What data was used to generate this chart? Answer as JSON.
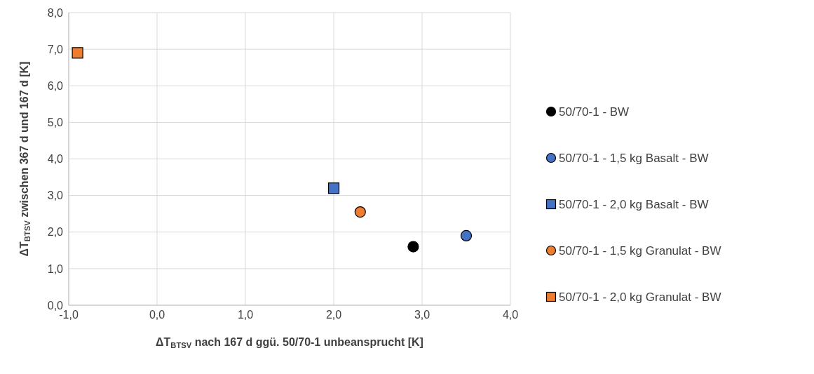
{
  "chart_data": {
    "type": "scatter",
    "xlabel": "ΔT$_{BTSV}$ nach 167 d ggü. 50/70-1 unbeansprucht [K]",
    "ylabel": "ΔT$_{BTSV}$ zwischen 367 d und 167 d [K]",
    "xlim": [
      -1,
      4
    ],
    "xticks": [
      {
        "value": -1,
        "label": "-1,0"
      },
      {
        "value": 0,
        "label": "0,0"
      },
      {
        "value": 1,
        "label": "1,0"
      },
      {
        "value": 2,
        "label": "2,0"
      },
      {
        "value": 3,
        "label": "3,0"
      },
      {
        "value": 4,
        "label": "4,0"
      }
    ],
    "ylim": [
      0,
      8
    ],
    "yticks": [
      {
        "value": 0,
        "label": "0,0"
      },
      {
        "value": 1,
        "label": "1,0"
      },
      {
        "value": 2,
        "label": "2,0"
      },
      {
        "value": 3,
        "label": "3,0"
      },
      {
        "value": 4,
        "label": "4,0"
      },
      {
        "value": 5,
        "label": "5,0"
      },
      {
        "value": 6,
        "label": "6,0"
      },
      {
        "value": 7,
        "label": "7,0"
      },
      {
        "value": 8,
        "label": "8,0"
      }
    ],
    "grid": true,
    "legend": "right",
    "series": [
      {
        "name": "50/70-1 - BW",
        "color": "#000000",
        "marker": "circle",
        "x": [
          2.9
        ],
        "values": [
          1.6
        ]
      },
      {
        "name": "50/70-1 - 1,5 kg Basalt - BW",
        "color": "#4472c4",
        "marker": "circle",
        "x": [
          3.5
        ],
        "values": [
          1.9
        ]
      },
      {
        "name": "50/70-1 - 2,0 kg Basalt - BW",
        "color": "#4472c4",
        "marker": "square",
        "x": [
          2.0
        ],
        "values": [
          3.2
        ]
      },
      {
        "name": "50/70-1 - 1,5 kg Granulat - BW",
        "color": "#ed7d31",
        "marker": "circle",
        "x": [
          2.3
        ],
        "values": [
          2.55
        ]
      },
      {
        "name": "50/70-1 - 2,0 kg Granulat - BW",
        "color": "#ed7d31",
        "marker": "square",
        "x": [
          -0.9
        ],
        "values": [
          6.9
        ]
      }
    ]
  }
}
